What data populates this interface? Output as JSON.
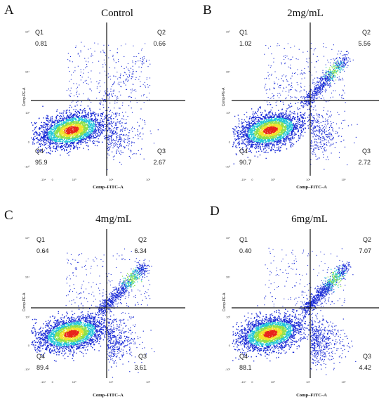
{
  "chart_data": [
    {
      "type": "scatter",
      "panel_label": "A",
      "title": "Control",
      "xlabel": "Comp–FITC–A",
      "ylabel": "Comp-PE-A",
      "x_tick_labels": [
        "-10⁴",
        "0",
        "10³",
        "10⁴",
        "10⁵"
      ],
      "y_tick_labels": [
        "-10³",
        "0",
        "10³",
        "10⁴",
        "10⁵"
      ],
      "quadrants": [
        {
          "name": "Q1",
          "value": "0.81"
        },
        {
          "name": "Q2",
          "value": "0.66"
        },
        {
          "name": "Q3",
          "value": "2.67"
        },
        {
          "name": "Q4",
          "value": "95.9"
        }
      ]
    },
    {
      "type": "scatter",
      "panel_label": "B",
      "title": "2mg/mL",
      "xlabel": "Comp–FITC–A",
      "ylabel": "Comp-PE-A",
      "x_tick_labels": [
        "-10⁴",
        "0",
        "10³",
        "10⁴",
        "10⁵"
      ],
      "y_tick_labels": [
        "-10³",
        "0",
        "10³",
        "10⁴",
        "10⁵"
      ],
      "quadrants": [
        {
          "name": "Q1",
          "value": "1.02"
        },
        {
          "name": "Q2",
          "value": "5.56"
        },
        {
          "name": "Q3",
          "value": "2.72"
        },
        {
          "name": "Q4",
          "value": "90.7"
        }
      ]
    },
    {
      "type": "scatter",
      "panel_label": "C",
      "title": "4mg/mL",
      "xlabel": "Comp–FITC–A",
      "ylabel": "Comp-PE-A",
      "x_tick_labels": [
        "-10⁴",
        "0",
        "10³",
        "10⁴",
        "10⁵"
      ],
      "y_tick_labels": [
        "-10³",
        "0",
        "10³",
        "10⁴",
        "10⁵"
      ],
      "quadrants": [
        {
          "name": "Q1",
          "value": "0.64"
        },
        {
          "name": "Q2",
          "value": "6.34"
        },
        {
          "name": "Q3",
          "value": "3.61"
        },
        {
          "name": "Q4",
          "value": "89.4"
        }
      ]
    },
    {
      "type": "scatter",
      "panel_label": "D",
      "title": "6mg/mL",
      "xlabel": "Comp–FITC–A",
      "ylabel": "Comp-PE-A",
      "x_tick_labels": [
        "-10⁴",
        "0",
        "10³",
        "10⁴",
        "10⁵"
      ],
      "y_tick_labels": [
        "-10³",
        "0",
        "10³",
        "10⁴",
        "10⁵"
      ],
      "quadrants": [
        {
          "name": "Q1",
          "value": "0.40"
        },
        {
          "name": "Q2",
          "value": "7.07"
        },
        {
          "name": "Q3",
          "value": "4.42"
        },
        {
          "name": "Q4",
          "value": "88.1"
        }
      ]
    }
  ],
  "colors": {
    "density_low": "#1a2bd6",
    "density_mid": "#22c6d8",
    "density_midhigh": "#8ce04a",
    "density_high": "#f2e22a",
    "density_peak": "#e8231a",
    "gate_lines": "#111111"
  }
}
